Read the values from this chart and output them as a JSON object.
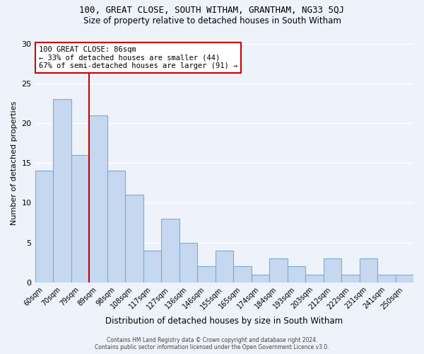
{
  "title": "100, GREAT CLOSE, SOUTH WITHAM, GRANTHAM, NG33 5QJ",
  "subtitle": "Size of property relative to detached houses in South Witham",
  "xlabel": "Distribution of detached houses by size in South Witham",
  "ylabel": "Number of detached properties",
  "bar_labels": [
    "60sqm",
    "70sqm",
    "79sqm",
    "89sqm",
    "98sqm",
    "108sqm",
    "117sqm",
    "127sqm",
    "136sqm",
    "146sqm",
    "155sqm",
    "165sqm",
    "174sqm",
    "184sqm",
    "193sqm",
    "203sqm",
    "212sqm",
    "222sqm",
    "231sqm",
    "241sqm",
    "250sqm"
  ],
  "bar_values": [
    14,
    23,
    16,
    21,
    14,
    11,
    4,
    8,
    5,
    2,
    4,
    2,
    1,
    3,
    2,
    1,
    3,
    1,
    3,
    1,
    1
  ],
  "bar_color": "#c5d8f0",
  "bar_edge_color": "#7aadd4",
  "vline_x": 2.5,
  "vline_color": "#cc0000",
  "ylim": [
    0,
    30
  ],
  "yticks": [
    0,
    5,
    10,
    15,
    20,
    25,
    30
  ],
  "annotation_title": "100 GREAT CLOSE: 86sqm",
  "annotation_line1": "← 33% of detached houses are smaller (44)",
  "annotation_line2": "67% of semi-detached houses are larger (91) →",
  "annotation_box_color": "#ffffff",
  "annotation_box_edge": "#cc0000",
  "footer1": "Contains HM Land Registry data © Crown copyright and database right 2024.",
  "footer2": "Contains public sector information licensed under the Open Government Licence v3.0.",
  "background_color": "#eef2fa"
}
